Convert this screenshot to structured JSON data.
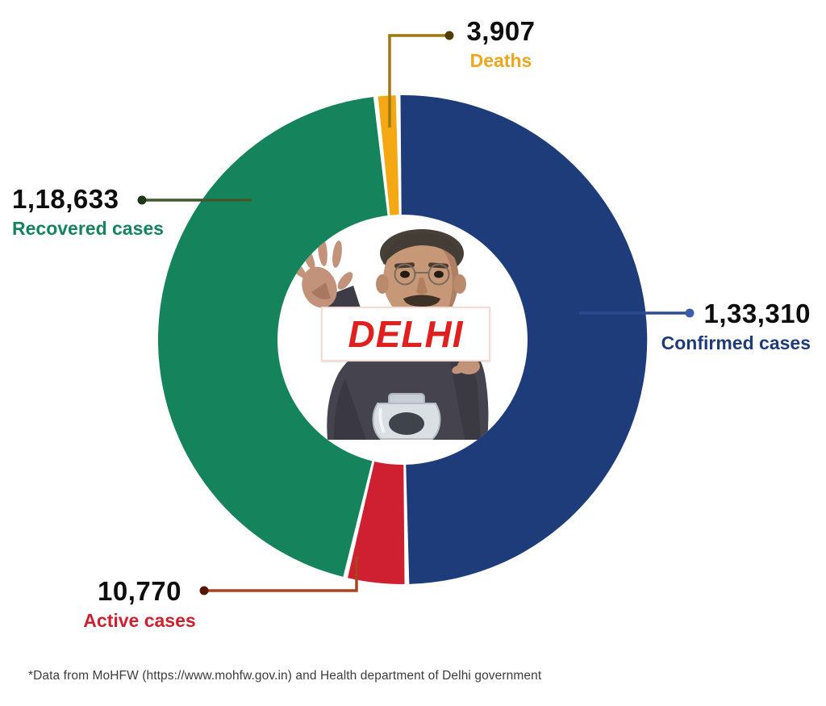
{
  "chart_data": {
    "type": "pie",
    "donut": true,
    "direction": "clockwise",
    "start_angle_deg": -6.3,
    "donut_hole_ratio": 0.51,
    "center_text": "DELHI",
    "slices": [
      {
        "key": "deaths",
        "label": "Deaths",
        "value": 3907,
        "display_value": "3,907",
        "color": "#F4A814",
        "callout_color": "#9C7A10",
        "dot_color": "#4F3E06",
        "label_color": "#EFA51E"
      },
      {
        "key": "confirmed",
        "label": "Confirmed cases",
        "value": 133310,
        "display_value": "1,33,310",
        "color": "#1F3C7A",
        "callout_color": "#2C4A8E",
        "dot_color": "#3D5EA6",
        "label_color": "#1F3C7A"
      },
      {
        "key": "active",
        "label": "Active cases",
        "value": 10770,
        "display_value": "10,770",
        "color": "#CE2030",
        "callout_color": "#A84420",
        "dot_color": "#551508",
        "label_color": "#CE2030"
      },
      {
        "key": "recovered",
        "label": "Recovered cases",
        "value": 118633,
        "display_value": "1,18,633",
        "color": "#15835C",
        "callout_color": "#3E5A2B",
        "dot_color": "#1F3518",
        "label_color": "#15835C"
      }
    ]
  },
  "center": {
    "sign_text": "DELHI",
    "sign_text_color": "#E01F1F"
  },
  "footer": {
    "note": "*Data from MoHFW (https://www.mohfw.gov.in) and Health department of Delhi government"
  }
}
